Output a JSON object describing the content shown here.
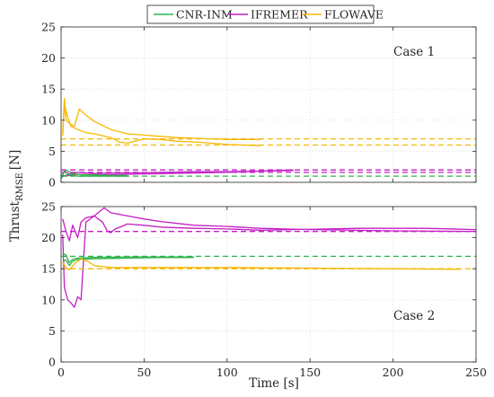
{
  "chart_data": {
    "type": "line",
    "xlabel": "Time [s]",
    "ylabel_main": "Thrust",
    "ylabel_sub": "RMSE",
    "ylabel_unit": "[N]",
    "xlim": [
      0,
      250
    ],
    "ylim": [
      0,
      25
    ],
    "xticks": [
      0,
      50,
      100,
      150,
      200,
      250
    ],
    "yticks": [
      0,
      5,
      10,
      15,
      20,
      25
    ],
    "grid": true,
    "legend": {
      "placement": "top",
      "entries": [
        {
          "name": "CNR-INM",
          "color": "#2db34a"
        },
        {
          "name": "IFREMER",
          "color": "#c41ec4"
        },
        {
          "name": "FLOWAVE",
          "color": "#f5b800"
        }
      ]
    },
    "panels": [
      {
        "annotation": "Case 1",
        "series": [
          {
            "name": "FLOWAVE",
            "style": "solid",
            "points": [
              [
                1,
                8
              ],
              [
                2,
                13.5
              ],
              [
                3,
                10
              ],
              [
                5,
                9.5
              ],
              [
                8,
                9
              ],
              [
                11,
                11.8
              ],
              [
                14,
                11
              ],
              [
                20,
                9.8
              ],
              [
                30,
                8.5
              ],
              [
                40,
                7.8
              ],
              [
                50,
                7.6
              ],
              [
                60,
                7.4
              ],
              [
                70,
                7.2
              ],
              [
                80,
                7.1
              ],
              [
                90,
                7
              ],
              [
                100,
                6.9
              ],
              [
                110,
                6.9
              ],
              [
                120,
                6.9
              ]
            ]
          },
          {
            "name": "FLOWAVE",
            "style": "solid",
            "points": [
              [
                1,
                7.5
              ],
              [
                2,
                12.5
              ],
              [
                4,
                10.5
              ],
              [
                6,
                9
              ],
              [
                10,
                8.5
              ],
              [
                15,
                8
              ],
              [
                20,
                7.8
              ],
              [
                30,
                7.2
              ],
              [
                35,
                6.5
              ],
              [
                40,
                6.3
              ],
              [
                50,
                7
              ],
              [
                60,
                6.9
              ],
              [
                70,
                6.6
              ],
              [
                80,
                6.5
              ],
              [
                90,
                6.3
              ],
              [
                100,
                6.1
              ],
              [
                110,
                6
              ],
              [
                120,
                5.9
              ]
            ]
          },
          {
            "name": "FLOWAVE",
            "style": "dashed",
            "points": [
              [
                0,
                7
              ],
              [
                250,
                7
              ]
            ]
          },
          {
            "name": "FLOWAVE",
            "style": "dashed",
            "points": [
              [
                0,
                6
              ],
              [
                250,
                6
              ]
            ]
          },
          {
            "name": "IFREMER",
            "style": "solid",
            "points": [
              [
                0,
                0.6
              ],
              [
                2,
                1.8
              ],
              [
                5,
                1.3
              ],
              [
                10,
                1.6
              ],
              [
                20,
                1.4
              ],
              [
                30,
                1.5
              ],
              [
                40,
                1.5
              ],
              [
                60,
                1.6
              ],
              [
                80,
                1.7
              ],
              [
                100,
                1.7
              ],
              [
                120,
                1.8
              ],
              [
                140,
                1.9
              ]
            ]
          },
          {
            "name": "IFREMER",
            "style": "solid",
            "points": [
              [
                0,
                1.2
              ],
              [
                3,
                1
              ],
              [
                8,
                1.3
              ],
              [
                20,
                1.2
              ],
              [
                40,
                1.3
              ],
              [
                60,
                1.4
              ],
              [
                80,
                1.5
              ],
              [
                100,
                1.6
              ],
              [
                120,
                1.8
              ],
              [
                140,
                2
              ]
            ]
          },
          {
            "name": "IFREMER",
            "style": "dashed",
            "points": [
              [
                0,
                2
              ],
              [
                250,
                2
              ]
            ]
          },
          {
            "name": "IFREMER",
            "style": "dashed",
            "points": [
              [
                0,
                1.6
              ],
              [
                250,
                1.6
              ]
            ]
          },
          {
            "name": "CNR-INM",
            "style": "solid",
            "points": [
              [
                0,
                1
              ],
              [
                3,
                2
              ],
              [
                6,
                1.5
              ],
              [
                12,
                1.2
              ],
              [
                20,
                1.2
              ],
              [
                30,
                1.1
              ],
              [
                40,
                1.1
              ]
            ]
          },
          {
            "name": "CNR-INM",
            "style": "solid",
            "points": [
              [
                0,
                0.8
              ],
              [
                4,
                1.3
              ],
              [
                10,
                1
              ],
              [
                20,
                1
              ],
              [
                30,
                1
              ],
              [
                40,
                1
              ]
            ]
          },
          {
            "name": "CNR-INM",
            "style": "dashed",
            "points": [
              [
                0,
                1
              ],
              [
                250,
                1
              ]
            ]
          }
        ]
      },
      {
        "annotation": "Case 2",
        "series": [
          {
            "name": "IFREMER",
            "style": "solid",
            "points": [
              [
                1,
                23
              ],
              [
                3,
                21
              ],
              [
                5,
                19.5
              ],
              [
                7,
                22
              ],
              [
                10,
                20
              ],
              [
                12,
                22.5
              ],
              [
                15,
                23.2
              ],
              [
                20,
                23.5
              ],
              [
                25,
                22.5
              ],
              [
                28,
                21
              ],
              [
                30,
                20.8
              ],
              [
                32,
                21.3
              ],
              [
                40,
                22.2
              ],
              [
                50,
                22
              ],
              [
                60,
                21.7
              ],
              [
                80,
                21.5
              ],
              [
                100,
                21.4
              ],
              [
                120,
                21.2
              ],
              [
                140,
                21.3
              ],
              [
                160,
                21.4
              ],
              [
                180,
                21.5
              ],
              [
                200,
                21.5
              ],
              [
                220,
                21.5
              ],
              [
                250,
                21.3
              ]
            ]
          },
          {
            "name": "IFREMER",
            "style": "solid",
            "points": [
              [
                1,
                20.5
              ],
              [
                2,
                12
              ],
              [
                4,
                10
              ],
              [
                6,
                9.5
              ],
              [
                8,
                8.8
              ],
              [
                10,
                10.5
              ],
              [
                12,
                10
              ],
              [
                15,
                22.5
              ],
              [
                20,
                23.5
              ],
              [
                26,
                24.8
              ],
              [
                30,
                24
              ],
              [
                40,
                23.5
              ],
              [
                50,
                23
              ],
              [
                60,
                22.6
              ],
              [
                80,
                22
              ],
              [
                100,
                21.8
              ],
              [
                120,
                21.5
              ],
              [
                150,
                21.3
              ],
              [
                200,
                21.1
              ],
              [
                250,
                21
              ]
            ]
          },
          {
            "name": "IFREMER",
            "style": "dashed",
            "points": [
              [
                0,
                21
              ],
              [
                250,
                21
              ]
            ]
          },
          {
            "name": "CNR-INM",
            "style": "solid",
            "points": [
              [
                1,
                17.5
              ],
              [
                3,
                17.2
              ],
              [
                5,
                16
              ],
              [
                7,
                16.5
              ],
              [
                10,
                16.7
              ],
              [
                20,
                16.8
              ],
              [
                40,
                16.9
              ],
              [
                60,
                16.9
              ],
              [
                80,
                16.9
              ]
            ]
          },
          {
            "name": "CNR-INM",
            "style": "solid",
            "points": [
              [
                1,
                16.2
              ],
              [
                3,
                16.4
              ],
              [
                5,
                15.5
              ],
              [
                7,
                16.2
              ],
              [
                10,
                16.5
              ],
              [
                20,
                16.6
              ],
              [
                40,
                16.7
              ],
              [
                60,
                16.8
              ],
              [
                80,
                16.8
              ]
            ]
          },
          {
            "name": "CNR-INM",
            "style": "dashed",
            "points": [
              [
                0,
                17
              ],
              [
                250,
                17
              ]
            ]
          },
          {
            "name": "FLOWAVE",
            "style": "solid",
            "points": [
              [
                1,
                16
              ],
              [
                3,
                15.2
              ],
              [
                5,
                14.8
              ],
              [
                8,
                15.8
              ],
              [
                12,
                16.6
              ],
              [
                16,
                16.2
              ],
              [
                20,
                15.5
              ],
              [
                30,
                15.2
              ],
              [
                50,
                15.2
              ],
              [
                100,
                15.2
              ],
              [
                150,
                15.1
              ],
              [
                200,
                15
              ],
              [
                240,
                14.9
              ]
            ]
          },
          {
            "name": "FLOWAVE",
            "style": "dashed",
            "points": [
              [
                0,
                15
              ],
              [
                250,
                15
              ]
            ]
          }
        ]
      }
    ]
  }
}
